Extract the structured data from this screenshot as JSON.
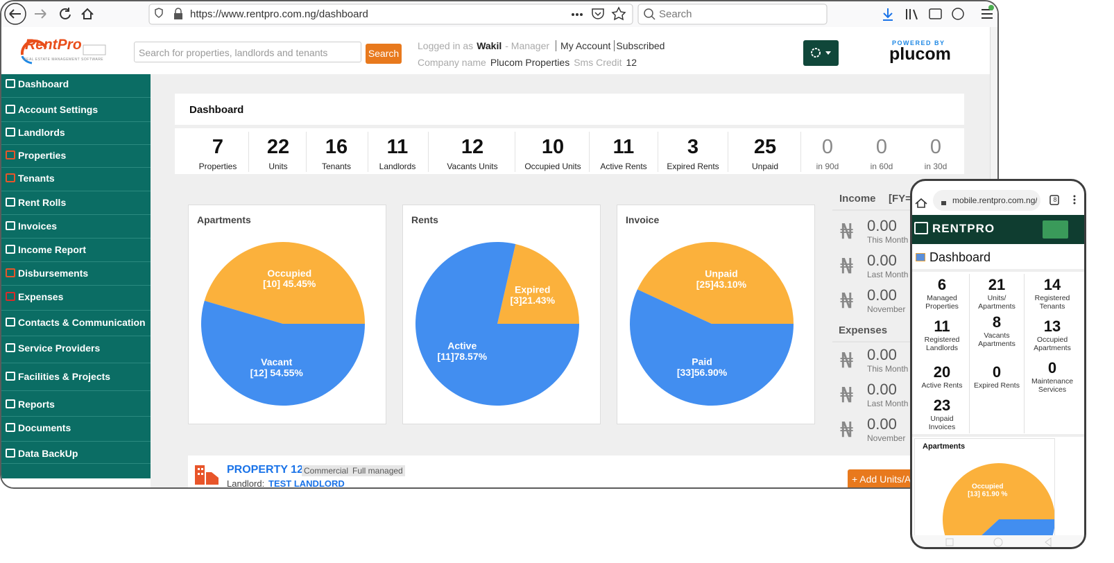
{
  "browser": {
    "url": "https://www.rentpro.com.ng/dashboard",
    "search": "Search"
  },
  "header": {
    "logo": "RentPro",
    "logo_tagline": "REAL ESTATE MANAGEMENT SOFTWARE",
    "search_placeholder": "Search for properties, landlords and tenants",
    "search_button": "Search",
    "logged_in": "Logged in as",
    "user": "Wakil",
    "role": "- Manager",
    "my_account": "My Account",
    "subscribed": "Subscribed",
    "company_label": "Company name",
    "company": "Plucom Properties",
    "sms_label": "Sms Credit",
    "sms_credit": 12,
    "powered_by": "POWERED BY",
    "brand": "plucom"
  },
  "sidebar": [
    "Dashboard",
    "Account Settings",
    "Landlords",
    "Properties",
    "Tenants",
    "Rent Rolls",
    "Invoices",
    "Income Report",
    "Disbursements",
    "Expenses",
    "Contacts & Communication",
    "Service Providers",
    "Facilities & Projects",
    "Reports",
    "Documents",
    "Data BackUp"
  ],
  "page_title": "Dashboard",
  "stats": [
    {
      "value": 7,
      "label": "Properties"
    },
    {
      "value": 22,
      "label": "Units"
    },
    {
      "value": 16,
      "label": "Tenants"
    },
    {
      "value": 11,
      "label": "Landlords"
    },
    {
      "value": 12,
      "label": "Vacants Units"
    },
    {
      "value": 10,
      "label": "Occupied Units"
    },
    {
      "value": 11,
      "label": "Active Rents"
    },
    {
      "value": 3,
      "label": "Expired Rents"
    },
    {
      "value": 25,
      "label": "Unpaid"
    },
    {
      "value": 0,
      "label": "in 90d"
    },
    {
      "value": 0,
      "label": "in 60d"
    },
    {
      "value": 0,
      "label": "in 30d"
    }
  ],
  "charts": [
    {
      "type": "pie",
      "title": "Apartments",
      "categories": [
        "Occupied",
        "Vacant"
      ],
      "values": [
        45.45,
        54.55
      ],
      "value_labels": [
        "[10] 45.45%",
        "[12] 54.55%"
      ],
      "colors": [
        "#fbb13c",
        "#428ef0"
      ]
    },
    {
      "type": "pie",
      "title": "Rents",
      "categories": [
        "Expired",
        "Active"
      ],
      "values": [
        21.43,
        78.57
      ],
      "value_labels": [
        "[3]21.43%",
        "[11]78.57%"
      ],
      "colors": [
        "#fbb13c",
        "#428ef0"
      ]
    },
    {
      "type": "pie",
      "title": "Invoice",
      "categories": [
        "Unpaid",
        "Paid"
      ],
      "values": [
        43.1,
        56.9
      ],
      "value_labels": [
        "[25]43.10%",
        "[33]56.90%"
      ],
      "colors": [
        "#fbb13c",
        "#428ef0"
      ]
    }
  ],
  "income": {
    "title": "Income",
    "fy": "[FY=",
    "currency": "₦",
    "items": [
      {
        "amount": "0.00",
        "period": "This Month"
      },
      {
        "amount": "0.00",
        "period": "Last Month"
      },
      {
        "amount": "0.00",
        "period": "November"
      }
    ]
  },
  "expenses": {
    "title": "Expenses",
    "currency": "₦",
    "items": [
      {
        "amount": "0.00",
        "period": "This Month"
      },
      {
        "amount": "0.00",
        "period": "Last Month"
      },
      {
        "amount": "0.00",
        "period": "November"
      }
    ]
  },
  "property": {
    "name": "PROPERTY 12",
    "tags": [
      "Commercial",
      "Full managed"
    ],
    "landlord_label": "Landlord:",
    "landlord": "TEST LANDLORD",
    "add_button": "+ Add Units/Ap"
  },
  "mobile": {
    "url": "mobile.rentpro.com.ng/d",
    "tabs": "8",
    "logo": "RENTPRO",
    "title": "Dashboard",
    "stats": [
      {
        "value": 6,
        "label": "Managed Properties"
      },
      {
        "value": 21,
        "label": "Units/ Apartments"
      },
      {
        "value": 14,
        "label": "Registered Tenants"
      },
      {
        "value": 11,
        "label": "Registered Landlords"
      },
      {
        "value": 8,
        "label": "Vacants Apartments"
      },
      {
        "value": 13,
        "label": "Occupied Apartments"
      },
      {
        "value": 20,
        "label": "Active Rents"
      },
      {
        "value": 0,
        "label": "Expired  Rents"
      },
      {
        "value": 0,
        "label": "Maintenance Services"
      },
      {
        "value": 23,
        "label": "Unpaid Invoices"
      }
    ],
    "chart": {
      "type": "pie",
      "title": "Apartments",
      "categories": [
        "Occupied",
        null
      ],
      "values": [
        61.9,
        38.1
      ],
      "value_labels": [
        "[13] 61.90 %",
        null
      ],
      "colors": [
        "#fbb13c",
        "#428ef0"
      ]
    }
  }
}
